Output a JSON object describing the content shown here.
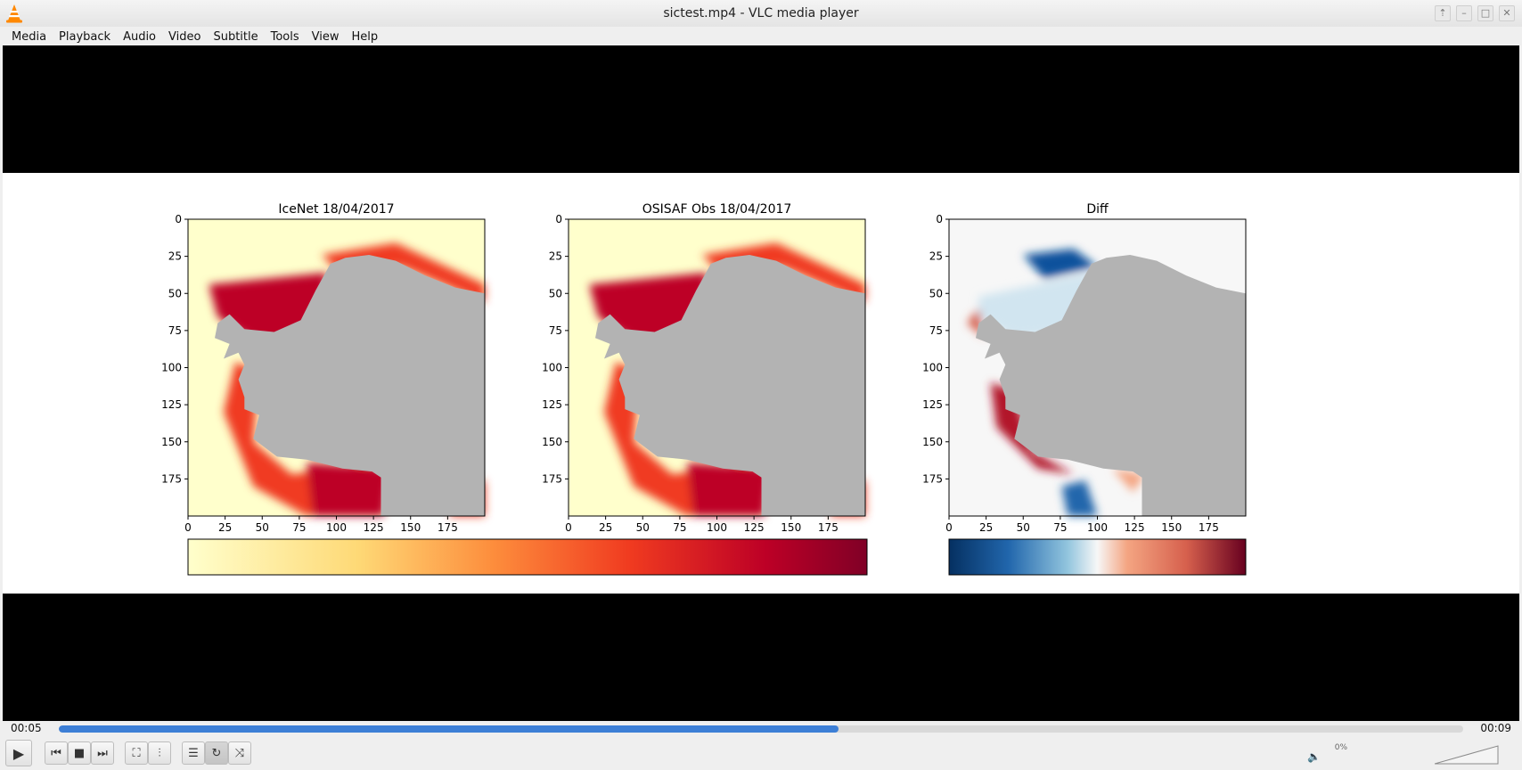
{
  "window": {
    "title": "sictest.mp4 - VLC media player",
    "controls": {
      "up": "⇡",
      "minimize": "–",
      "maximize": "□",
      "close": "✕"
    }
  },
  "menu": [
    "Media",
    "Playback",
    "Audio",
    "Video",
    "Subtitle",
    "Tools",
    "View",
    "Help"
  ],
  "video_frame": {
    "panels": [
      {
        "title": "IceNet 18/04/2017"
      },
      {
        "title": "OSISAF Obs 18/04/2017"
      },
      {
        "title": "Diff"
      }
    ],
    "x_ticks": [
      "0",
      "25",
      "50",
      "75",
      "100",
      "125",
      "150",
      "175"
    ],
    "y_ticks": [
      "0",
      "25",
      "50",
      "75",
      "100",
      "125",
      "150",
      "175"
    ],
    "colors": {
      "land": "#b3b3b3",
      "open_water": "#ffffcc",
      "ice_high": "#bd0026",
      "ice_mid": "#f03b20",
      "diff_neg": "#08519c",
      "diff_pos": "#b2182b",
      "diff_zero": "#f7f7f7"
    }
  },
  "playback": {
    "elapsed": "00:05",
    "total": "00:09",
    "progress_fraction": 0.555
  },
  "controls": {
    "play_icon": "▶",
    "prev_icon": "⏮",
    "stop_icon": "■",
    "next_icon": "⏭",
    "fullscreen_icon": "⛶",
    "extended_icon": "⫶",
    "playlist_icon": "☰",
    "loop_icon": "↻",
    "shuffle_icon": "⤨"
  },
  "volume": {
    "icon": "🔈",
    "label": "0%",
    "level_fraction": 0.0
  }
}
